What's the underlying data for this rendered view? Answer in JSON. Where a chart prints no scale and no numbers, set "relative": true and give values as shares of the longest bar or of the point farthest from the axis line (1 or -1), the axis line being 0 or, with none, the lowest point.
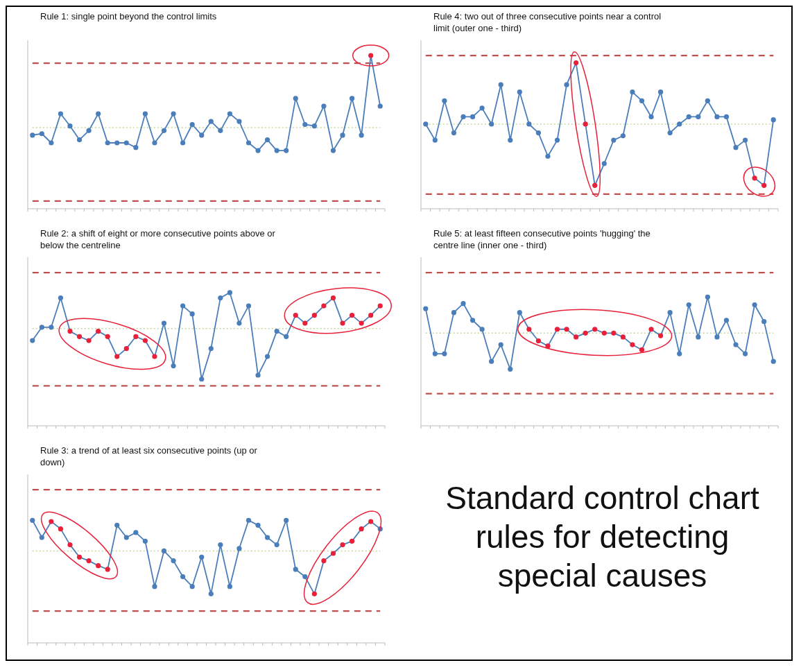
{
  "chart_data": [
    {
      "type": "line",
      "title": "Rule 1: single point beyond the control limits",
      "relative": true,
      "marker": "circle",
      "categories": [
        null,
        null,
        null,
        null,
        null,
        null,
        null,
        null,
        null,
        null,
        null,
        null,
        null,
        null,
        null,
        null,
        null,
        null,
        null,
        null,
        null,
        null,
        null,
        null,
        null,
        null,
        null,
        null,
        null,
        null,
        null,
        null,
        null,
        null,
        null,
        null,
        null,
        null
      ],
      "series": [
        {
          "color": "#4a7ebb",
          "values": [
            0.48,
            0.49,
            0.43,
            0.62,
            0.54,
            0.45,
            0.51,
            0.62,
            0.43,
            0.43,
            0.43,
            0.4,
            0.62,
            0.43,
            0.51,
            0.62,
            0.43,
            0.55,
            0.48,
            0.57,
            0.51,
            0.62,
            0.57,
            0.43,
            0.38,
            0.45,
            0.38,
            0.38,
            0.72,
            0.55,
            0.54,
            0.67,
            0.38,
            0.48,
            0.72,
            0.48,
            1,
            0.67
          ],
          "colors": [
            "#4a7ebb",
            "#4a7ebb",
            "#4a7ebb",
            "#4a7ebb",
            "#4a7ebb",
            "#4a7ebb",
            "#4a7ebb",
            "#4a7ebb",
            "#4a7ebb",
            "#4a7ebb",
            "#4a7ebb",
            "#4a7ebb",
            "#4a7ebb",
            "#4a7ebb",
            "#4a7ebb",
            "#4a7ebb",
            "#4a7ebb",
            "#4a7ebb",
            "#4a7ebb",
            "#4a7ebb",
            "#4a7ebb",
            "#4a7ebb",
            "#4a7ebb",
            "#4a7ebb",
            "#4a7ebb",
            "#4a7ebb",
            "#4a7ebb",
            "#4a7ebb",
            "#4a7ebb",
            "#4a7ebb",
            "#4a7ebb",
            "#4a7ebb",
            "#4a7ebb",
            "#4a7ebb",
            "#4a7ebb",
            "#4a7ebb",
            "#e8203a",
            "#4a7ebb"
          ]
        }
      ],
      "ref_lines": [
        {
          "axis": "y",
          "value": 0.95,
          "color": "#c0504d",
          "line_style": "dashed"
        },
        {
          "axis": "y",
          "value": 0.53,
          "color": "#c4d79b",
          "line_style": "dotted"
        },
        {
          "axis": "y",
          "value": 0.05,
          "color": "#c0504d",
          "line_style": "dashed"
        }
      ]
    },
    {
      "type": "line",
      "title": "Rule 4: two out of three consecutive points near a control limit (outer one - third)",
      "relative": true,
      "marker": "circle",
      "categories": [
        null,
        null,
        null,
        null,
        null,
        null,
        null,
        null,
        null,
        null,
        null,
        null,
        null,
        null,
        null,
        null,
        null,
        null,
        null,
        null,
        null,
        null,
        null,
        null,
        null,
        null,
        null,
        null,
        null,
        null,
        null,
        null,
        null,
        null,
        null,
        null,
        null,
        null
      ],
      "series": [
        {
          "color": "#4a7ebb",
          "values": [
            0.58,
            0.47,
            0.74,
            0.52,
            0.63,
            0.63,
            0.69,
            0.58,
            0.85,
            0.47,
            0.8,
            0.58,
            0.52,
            0.36,
            0.47,
            0.85,
            1,
            0.58,
            0.16,
            0.31,
            0.47,
            0.5,
            0.8,
            0.74,
            0.63,
            0.8,
            0.52,
            0.58,
            0.63,
            0.63,
            0.74,
            0.63,
            0.63,
            0.42,
            0.47,
            0.21,
            0.16,
            0.61
          ],
          "colors": [
            "#4a7ebb",
            "#4a7ebb",
            "#4a7ebb",
            "#4a7ebb",
            "#4a7ebb",
            "#4a7ebb",
            "#4a7ebb",
            "#4a7ebb",
            "#4a7ebb",
            "#4a7ebb",
            "#4a7ebb",
            "#4a7ebb",
            "#4a7ebb",
            "#4a7ebb",
            "#4a7ebb",
            "#4a7ebb",
            "#e8203a",
            "#e8203a",
            "#e8203a",
            "#4a7ebb",
            "#4a7ebb",
            "#4a7ebb",
            "#4a7ebb",
            "#4a7ebb",
            "#4a7ebb",
            "#4a7ebb",
            "#4a7ebb",
            "#4a7ebb",
            "#4a7ebb",
            "#4a7ebb",
            "#4a7ebb",
            "#4a7ebb",
            "#4a7ebb",
            "#4a7ebb",
            "#4a7ebb",
            "#e8203a",
            "#e8203a",
            "#4a7ebb"
          ]
        }
      ],
      "ref_lines": [
        {
          "axis": "y",
          "value": 1.05,
          "color": "#c0504d",
          "line_style": "dashed"
        },
        {
          "axis": "y",
          "value": 0.58,
          "color": "#c4d79b",
          "line_style": "dotted"
        },
        {
          "axis": "y",
          "value": 0.1,
          "color": "#c0504d",
          "line_style": "dashed"
        }
      ]
    },
    {
      "type": "line",
      "title": "Rule 2: a shift of eight or more consecutive points above or below the centreline",
      "relative": true,
      "marker": "circle",
      "categories": [
        null,
        null,
        null,
        null,
        null,
        null,
        null,
        null,
        null,
        null,
        null,
        null,
        null,
        null,
        null,
        null,
        null,
        null,
        null,
        null,
        null,
        null,
        null,
        null,
        null,
        null,
        null,
        null,
        null,
        null,
        null,
        null,
        null,
        null,
        null,
        null,
        null,
        null
      ],
      "series": [
        {
          "color": "#4a7ebb",
          "values": [
            0.64,
            0.74,
            0.74,
            0.96,
            0.71,
            0.67,
            0.64,
            0.71,
            0.67,
            0.52,
            0.58,
            0.67,
            0.64,
            0.52,
            0.77,
            0.45,
            0.9,
            0.84,
            0.35,
            0.58,
            0.96,
            1,
            0.77,
            0.9,
            0.38,
            0.52,
            0.71,
            0.67,
            0.83,
            0.77,
            0.83,
            0.9,
            0.96,
            0.77,
            0.83,
            0.77,
            0.83,
            0.9
          ],
          "colors": [
            "#4a7ebb",
            "#4a7ebb",
            "#4a7ebb",
            "#4a7ebb",
            "#e8203a",
            "#e8203a",
            "#e8203a",
            "#e8203a",
            "#e8203a",
            "#e8203a",
            "#e8203a",
            "#e8203a",
            "#e8203a",
            "#e8203a",
            "#4a7ebb",
            "#4a7ebb",
            "#4a7ebb",
            "#4a7ebb",
            "#4a7ebb",
            "#4a7ebb",
            "#4a7ebb",
            "#4a7ebb",
            "#4a7ebb",
            "#4a7ebb",
            "#4a7ebb",
            "#4a7ebb",
            "#4a7ebb",
            "#4a7ebb",
            "#e8203a",
            "#e8203a",
            "#e8203a",
            "#e8203a",
            "#e8203a",
            "#e8203a",
            "#e8203a",
            "#e8203a",
            "#e8203a",
            "#e8203a"
          ]
        }
      ],
      "ref_lines": [
        {
          "axis": "y",
          "value": 1.15,
          "color": "#c0504d",
          "line_style": "dashed"
        },
        {
          "axis": "y",
          "value": 0.73,
          "color": "#c4d79b",
          "line_style": "dotted"
        },
        {
          "axis": "y",
          "value": 0.3,
          "color": "#c0504d",
          "line_style": "dashed"
        }
      ]
    },
    {
      "type": "line",
      "title": "Rule 5:  at least fifteen consecutive points 'hugging' the centre line (inner one - third)",
      "relative": true,
      "marker": "circle",
      "categories": [
        null,
        null,
        null,
        null,
        null,
        null,
        null,
        null,
        null,
        null,
        null,
        null,
        null,
        null,
        null,
        null,
        null,
        null,
        null,
        null,
        null,
        null,
        null,
        null,
        null,
        null,
        null,
        null,
        null,
        null,
        null,
        null,
        null,
        null,
        null,
        null,
        null,
        null
      ],
      "series": [
        {
          "color": "#4a7ebb",
          "values": [
            0.91,
            0.56,
            0.56,
            0.88,
            0.95,
            0.82,
            0.75,
            0.5,
            0.63,
            0.44,
            0.88,
            0.75,
            0.66,
            0.62,
            0.75,
            0.75,
            0.69,
            0.72,
            0.75,
            0.72,
            0.72,
            0.69,
            0.63,
            0.59,
            0.75,
            0.7,
            0.88,
            0.56,
            0.94,
            0.69,
            1,
            0.69,
            0.82,
            0.63,
            0.56,
            0.94,
            0.81,
            0.5
          ],
          "colors": [
            "#4a7ebb",
            "#4a7ebb",
            "#4a7ebb",
            "#4a7ebb",
            "#4a7ebb",
            "#4a7ebb",
            "#4a7ebb",
            "#4a7ebb",
            "#4a7ebb",
            "#4a7ebb",
            "#4a7ebb",
            "#e8203a",
            "#e8203a",
            "#e8203a",
            "#e8203a",
            "#e8203a",
            "#e8203a",
            "#e8203a",
            "#e8203a",
            "#e8203a",
            "#e8203a",
            "#e8203a",
            "#e8203a",
            "#e8203a",
            "#e8203a",
            "#e8203a",
            "#4a7ebb",
            "#4a7ebb",
            "#4a7ebb",
            "#4a7ebb",
            "#4a7ebb",
            "#4a7ebb",
            "#4a7ebb",
            "#4a7ebb",
            "#4a7ebb",
            "#4a7ebb",
            "#4a7ebb",
            "#4a7ebb"
          ]
        }
      ],
      "ref_lines": [
        {
          "axis": "y",
          "value": 1.19,
          "color": "#c0504d",
          "line_style": "dashed"
        },
        {
          "axis": "y",
          "value": 0.72,
          "color": "#c4d79b",
          "line_style": "dotted"
        },
        {
          "axis": "y",
          "value": 0.25,
          "color": "#c0504d",
          "line_style": "dashed"
        }
      ]
    },
    {
      "type": "line",
      "title": "Rule 3: a trend of at least six consecutive points (up or down)",
      "relative": true,
      "marker": "circle",
      "categories": [
        null,
        null,
        null,
        null,
        null,
        null,
        null,
        null,
        null,
        null,
        null,
        null,
        null,
        null,
        null,
        null,
        null,
        null,
        null,
        null,
        null,
        null,
        null,
        null,
        null,
        null,
        null,
        null,
        null,
        null,
        null,
        null,
        null,
        null,
        null,
        null,
        null,
        null
      ],
      "series": [
        {
          "color": "#4a7ebb",
          "values": [
            1,
            0.86,
            0.99,
            0.93,
            0.8,
            0.7,
            0.67,
            0.63,
            0.6,
            0.96,
            0.86,
            0.9,
            0.83,
            0.46,
            0.75,
            0.67,
            0.54,
            0.46,
            0.7,
            0.4,
            0.8,
            0.46,
            0.77,
            1,
            0.96,
            0.86,
            0.8,
            1,
            0.6,
            0.54,
            0.4,
            0.67,
            0.73,
            0.8,
            0.83,
            0.93,
            0.99,
            0.93
          ],
          "colors": [
            "#4a7ebb",
            "#4a7ebb",
            "#e8203a",
            "#e8203a",
            "#e8203a",
            "#e8203a",
            "#e8203a",
            "#e8203a",
            "#e8203a",
            "#4a7ebb",
            "#4a7ebb",
            "#4a7ebb",
            "#4a7ebb",
            "#4a7ebb",
            "#4a7ebb",
            "#4a7ebb",
            "#4a7ebb",
            "#4a7ebb",
            "#4a7ebb",
            "#4a7ebb",
            "#4a7ebb",
            "#4a7ebb",
            "#4a7ebb",
            "#4a7ebb",
            "#4a7ebb",
            "#4a7ebb",
            "#4a7ebb",
            "#4a7ebb",
            "#4a7ebb",
            "#4a7ebb",
            "#e8203a",
            "#e8203a",
            "#e8203a",
            "#e8203a",
            "#e8203a",
            "#e8203a",
            "#e8203a",
            "#4a7ebb"
          ]
        }
      ],
      "ref_lines": [
        {
          "axis": "y",
          "value": 1.25,
          "color": "#c0504d",
          "line_style": "dashed"
        },
        {
          "axis": "y",
          "value": 0.75,
          "color": "#c4d79b",
          "line_style": "dotted"
        },
        {
          "axis": "y",
          "value": 0.26,
          "color": "#c0504d",
          "line_style": "dashed"
        }
      ]
    },
    {
      "type": "other",
      "title": "Standard control chart rules for detecting special causes"
    }
  ]
}
